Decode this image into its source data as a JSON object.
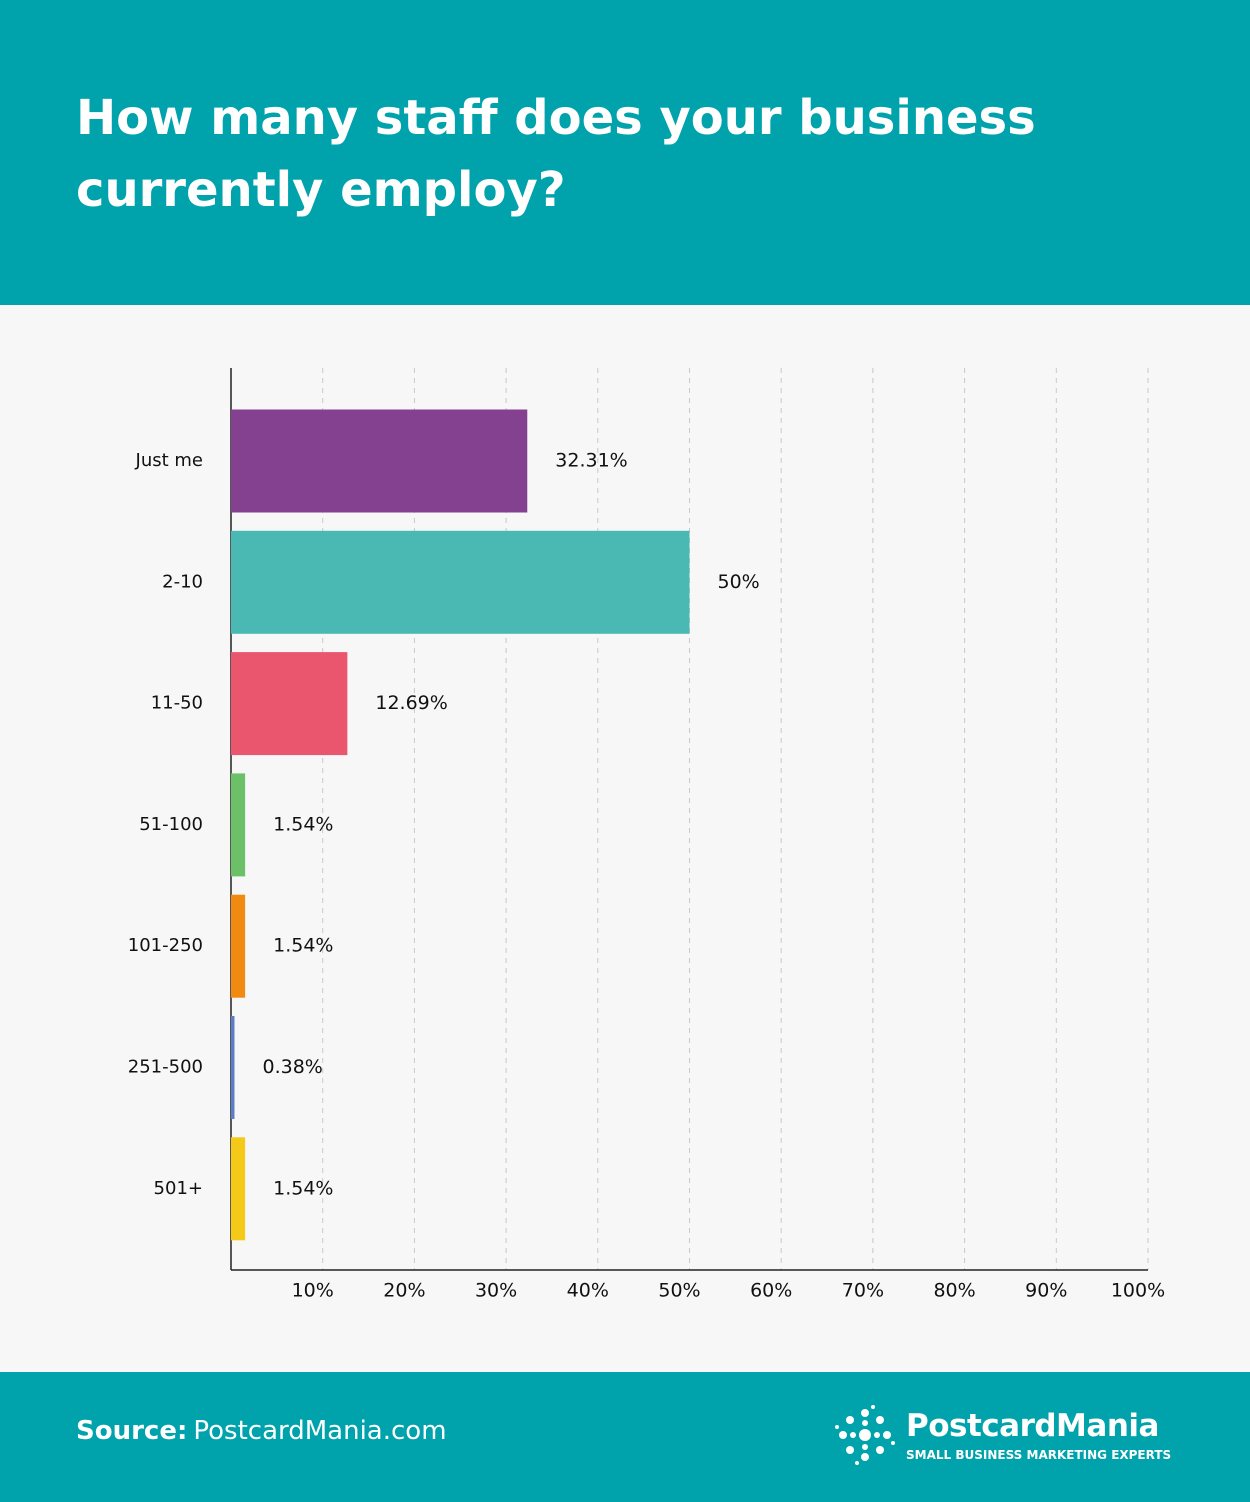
{
  "chart_data": {
    "type": "bar",
    "orientation": "horizontal",
    "title": "How many staff does your business currently employ?",
    "categories": [
      "Just me",
      "2-10",
      "11-50",
      "51-100",
      "101-250",
      "251-500",
      "501+"
    ],
    "values": [
      32.31,
      50,
      12.69,
      1.54,
      1.54,
      0.38,
      1.54
    ],
    "value_labels": [
      "32.31%",
      "50%",
      "12.69%",
      "1.54%",
      "1.54%",
      "0.38%",
      "1.54%"
    ],
    "colors": [
      "#83418f",
      "#4ab9b3",
      "#e9566e",
      "#6cc067",
      "#f08a11",
      "#5b7fc6",
      "#f5c917"
    ],
    "xlim": [
      0,
      100
    ],
    "xticks": [
      {
        "value": 10,
        "label": "10%"
      },
      {
        "value": 20,
        "label": "20%"
      },
      {
        "value": 30,
        "label": "30%"
      },
      {
        "value": 40,
        "label": "40%"
      },
      {
        "value": 50,
        "label": "50%"
      },
      {
        "value": 60,
        "label": "60%"
      },
      {
        "value": 70,
        "label": "70%"
      },
      {
        "value": 80,
        "label": "80%"
      },
      {
        "value": 90,
        "label": "90%"
      },
      {
        "value": 100,
        "label": "100%"
      }
    ],
    "grid": true
  },
  "footer": {
    "source_label": "Source:",
    "source": "PostcardMania.com",
    "logo_name": "PostcardMania",
    "logo_tagline": "SMALL BUSINESS MARKETING EXPERTS"
  }
}
